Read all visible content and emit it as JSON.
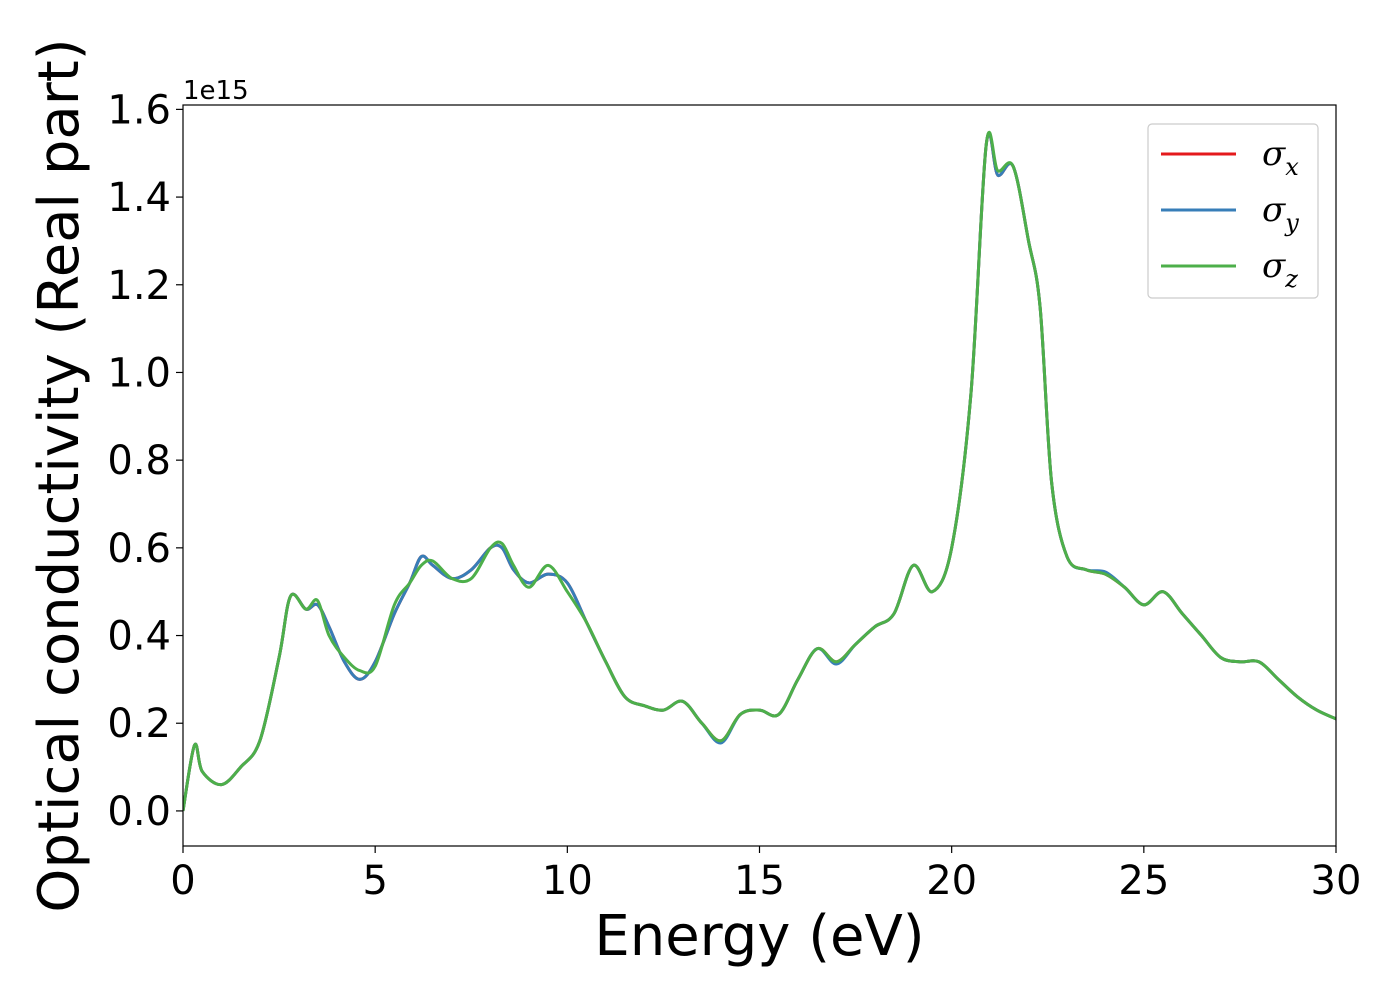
{
  "chart_data": {
    "type": "line",
    "xlabel": "Energy (eV)",
    "ylabel": "Optical conductivity (Real part)",
    "offset_text": "1e15",
    "xlim": [
      0,
      30
    ],
    "ylim": [
      -0.08,
      1.61
    ],
    "x_ticks": [
      0,
      5,
      10,
      15,
      20,
      25,
      30
    ],
    "x_tick_labels": [
      "0",
      "5",
      "10",
      "15",
      "20",
      "25",
      "30"
    ],
    "y_ticks": [
      0.0,
      0.2,
      0.4,
      0.6,
      0.8,
      1.0,
      1.2,
      1.4,
      1.6
    ],
    "y_tick_labels": [
      "0.0",
      "0.2",
      "0.4",
      "0.6",
      "0.8",
      "1.0",
      "1.2",
      "1.4",
      "1.6"
    ],
    "grid": false,
    "legend_position": "top-right",
    "x": [
      0,
      0.3,
      0.5,
      1.0,
      1.5,
      2.0,
      2.5,
      2.8,
      3.2,
      3.5,
      3.8,
      4.2,
      4.6,
      5.0,
      5.5,
      5.9,
      6.2,
      6.5,
      7.0,
      7.5,
      8.0,
      8.3,
      8.6,
      9.0,
      9.5,
      10.0,
      10.5,
      11.0,
      11.5,
      12.0,
      12.5,
      13.0,
      13.5,
      14.0,
      14.5,
      15.0,
      15.5,
      16.0,
      16.5,
      17.0,
      17.5,
      18.0,
      18.5,
      19.0,
      19.5,
      20.0,
      20.5,
      20.9,
      21.2,
      21.6,
      22.0,
      22.3,
      22.6,
      23.0,
      23.5,
      24.0,
      24.5,
      25.0,
      25.5,
      26.0,
      26.5,
      27.0,
      27.5,
      28.0,
      28.5,
      29.0,
      29.5,
      30.0
    ],
    "series": [
      {
        "name": "σx",
        "color": "#e41a1c",
        "values": [
          0.0,
          0.15,
          0.09,
          0.06,
          0.1,
          0.16,
          0.35,
          0.49,
          0.46,
          0.47,
          0.42,
          0.34,
          0.3,
          0.34,
          0.45,
          0.52,
          0.58,
          0.56,
          0.53,
          0.55,
          0.6,
          0.6,
          0.55,
          0.52,
          0.54,
          0.52,
          0.43,
          0.34,
          0.26,
          0.24,
          0.23,
          0.25,
          0.2,
          0.16,
          0.22,
          0.23,
          0.22,
          0.3,
          0.37,
          0.34,
          0.38,
          0.42,
          0.45,
          0.56,
          0.5,
          0.6,
          0.95,
          1.52,
          1.45,
          1.47,
          1.3,
          1.15,
          0.75,
          0.58,
          0.55,
          0.54,
          0.51,
          0.47,
          0.5,
          0.45,
          0.4,
          0.35,
          0.34,
          0.34,
          0.3,
          0.26,
          0.23,
          0.21
        ]
      },
      {
        "name": "σy",
        "color": "#377eb8",
        "values": [
          0.0,
          0.15,
          0.09,
          0.06,
          0.1,
          0.16,
          0.35,
          0.49,
          0.46,
          0.47,
          0.42,
          0.34,
          0.3,
          0.34,
          0.45,
          0.52,
          0.58,
          0.56,
          0.53,
          0.55,
          0.6,
          0.6,
          0.55,
          0.52,
          0.54,
          0.52,
          0.43,
          0.34,
          0.26,
          0.24,
          0.23,
          0.25,
          0.2,
          0.155,
          0.22,
          0.23,
          0.22,
          0.3,
          0.37,
          0.335,
          0.38,
          0.42,
          0.45,
          0.56,
          0.5,
          0.6,
          0.95,
          1.52,
          1.45,
          1.47,
          1.3,
          1.15,
          0.75,
          0.58,
          0.55,
          0.545,
          0.51,
          0.47,
          0.5,
          0.45,
          0.4,
          0.35,
          0.34,
          0.34,
          0.3,
          0.26,
          0.23,
          0.21
        ]
      },
      {
        "name": "σz",
        "color": "#4daf4a",
        "values": [
          0.0,
          0.15,
          0.09,
          0.06,
          0.1,
          0.16,
          0.35,
          0.49,
          0.46,
          0.48,
          0.4,
          0.35,
          0.32,
          0.33,
          0.47,
          0.52,
          0.56,
          0.57,
          0.53,
          0.53,
          0.6,
          0.61,
          0.56,
          0.51,
          0.56,
          0.5,
          0.43,
          0.34,
          0.26,
          0.24,
          0.23,
          0.25,
          0.2,
          0.16,
          0.22,
          0.23,
          0.22,
          0.3,
          0.37,
          0.34,
          0.38,
          0.42,
          0.45,
          0.56,
          0.5,
          0.6,
          0.95,
          1.52,
          1.46,
          1.47,
          1.3,
          1.15,
          0.75,
          0.58,
          0.55,
          0.54,
          0.51,
          0.47,
          0.5,
          0.45,
          0.4,
          0.35,
          0.34,
          0.34,
          0.3,
          0.26,
          0.23,
          0.21
        ]
      }
    ],
    "legend": [
      {
        "sym": "σ",
        "sub": "x",
        "color": "#e41a1c"
      },
      {
        "sym": "σ",
        "sub": "y",
        "color": "#377eb8"
      },
      {
        "sym": "σ",
        "sub": "z",
        "color": "#4daf4a"
      }
    ]
  }
}
